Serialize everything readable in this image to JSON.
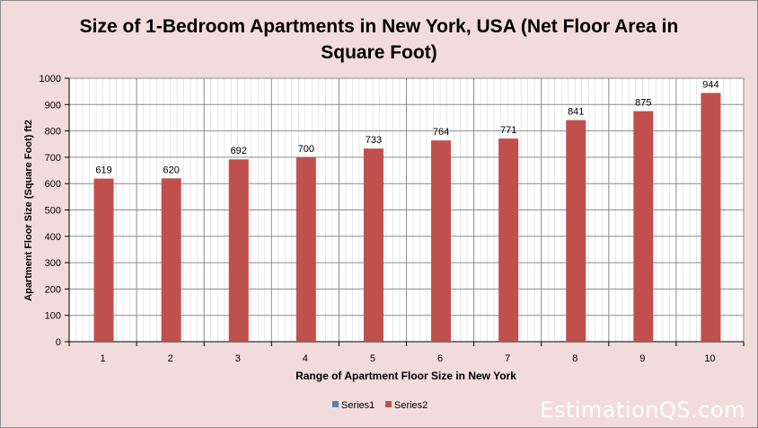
{
  "chart_data": {
    "type": "bar",
    "title": "Size of 1-Bedroom Apartments in New York, USA (Net Floor Area in Square Foot)",
    "title_lines": [
      "Size of 1-Bedroom Apartments in New York, USA (Net Floor Area in",
      "Square Foot)"
    ],
    "xlabel": "Range of Apartment Floor Size in New York",
    "ylabel": "Apartment Floor Size (Square Foot) ft2",
    "categories": [
      "1",
      "2",
      "3",
      "4",
      "5",
      "6",
      "7",
      "8",
      "9",
      "10"
    ],
    "series": [
      {
        "name": "Series1",
        "color": "#4f81bd",
        "values": [
          0,
          0,
          0,
          0,
          0,
          0,
          0,
          0,
          0,
          0
        ]
      },
      {
        "name": "Series2",
        "color": "#c0504d",
        "values": [
          619,
          620,
          692,
          700,
          733,
          764,
          771,
          841,
          875,
          944
        ]
      }
    ],
    "data_labels": [
      "619",
      "620",
      "692",
      "700",
      "733",
      "764",
      "771",
      "841",
      "875",
      "944"
    ],
    "ylim": [
      0,
      1000
    ],
    "yticks": [
      "0",
      "100",
      "200",
      "300",
      "400",
      "500",
      "600",
      "700",
      "800",
      "900",
      "1000"
    ],
    "grid": true,
    "legend_position": "bottom",
    "colors": {
      "background": "#f2dcdb",
      "plot_background": "#ffffff",
      "gridline": "#8c8c8c"
    }
  },
  "watermark": "EstimationQS.com"
}
